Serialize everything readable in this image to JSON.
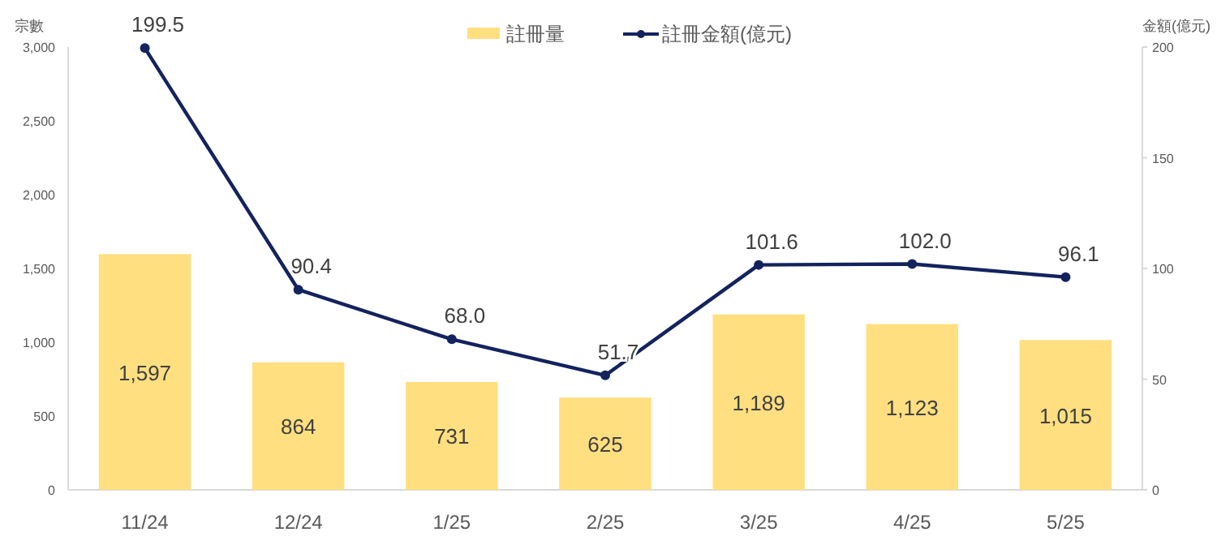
{
  "chart_data": {
    "type": "bar",
    "categories": [
      "11/24",
      "12/24",
      "1/25",
      "2/25",
      "3/25",
      "4/25",
      "5/25"
    ],
    "series": [
      {
        "name": "註冊量",
        "color": "#ffdf80",
        "values": [
          1597,
          864,
          731,
          625,
          1189,
          1123,
          1015
        ],
        "value_labels": [
          "1,597",
          "864",
          "731",
          "625",
          "1,189",
          "1,123",
          "1,015"
        ]
      },
      {
        "name": "註冊金額(億元)",
        "type": "line",
        "axis": "y2",
        "color": "#13235e",
        "marker": "circle",
        "values": [
          199.5,
          90.4,
          68.0,
          51.7,
          101.6,
          102.0,
          96.1
        ],
        "value_labels": [
          "199.5",
          "90.4",
          "68.0",
          "51.7",
          "101.6",
          "102.0",
          "96.1"
        ]
      }
    ],
    "ylabel": "宗數",
    "y2label": "金額(億元)",
    "ylim": [
      0,
      3000
    ],
    "yticks": [
      0,
      500,
      {
        "value": 1000,
        "label": "1,000"
      },
      {
        "value": 1500,
        "label": "1,500"
      },
      {
        "value": 2000,
        "label": "2,000"
      },
      {
        "value": 2500,
        "label": "2,500"
      },
      {
        "value": 3000,
        "label": "3,000"
      }
    ],
    "y2lim": [
      0,
      200
    ],
    "y2ticks": [
      0,
      50,
      100,
      150,
      200
    ],
    "data_labels": true,
    "legend": "top",
    "grid": false
  }
}
